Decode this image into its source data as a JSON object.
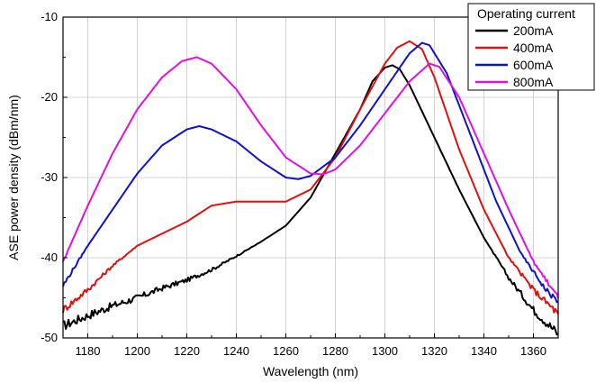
{
  "chart_data": {
    "type": "line",
    "title": "",
    "xlabel": "Wavelength (nm)",
    "ylabel": "ASE power density (dBm/nm)",
    "xlim": [
      1170,
      1370
    ],
    "ylim": [
      -50,
      -10
    ],
    "xticks": [
      1180,
      1200,
      1220,
      1240,
      1260,
      1280,
      1300,
      1320,
      1340,
      1360
    ],
    "yticks": [
      -10,
      -20,
      -30,
      -40,
      -50
    ],
    "grid": true,
    "legend": {
      "title": "Operating current",
      "placement": "top-right"
    },
    "series": [
      {
        "name": "200mA",
        "color": "#000000",
        "points": [
          [
            1170,
            -48.5
          ],
          [
            1180,
            -47.2
          ],
          [
            1190,
            -46.0
          ],
          [
            1200,
            -45.0
          ],
          [
            1210,
            -43.8
          ],
          [
            1220,
            -42.8
          ],
          [
            1230,
            -41.5
          ],
          [
            1240,
            -39.8
          ],
          [
            1250,
            -38.0
          ],
          [
            1260,
            -36.0
          ],
          [
            1270,
            -32.5
          ],
          [
            1280,
            -27.0
          ],
          [
            1290,
            -21.5
          ],
          [
            1295,
            -18.0
          ],
          [
            1300,
            -16.3
          ],
          [
            1303,
            -16.0
          ],
          [
            1306,
            -16.5
          ],
          [
            1310,
            -18.5
          ],
          [
            1320,
            -25.0
          ],
          [
            1330,
            -31.5
          ],
          [
            1340,
            -37.5
          ],
          [
            1350,
            -42.5
          ],
          [
            1360,
            -46.5
          ],
          [
            1370,
            -49.5
          ]
        ]
      },
      {
        "name": "400mA",
        "color": "#e01010",
        "points": [
          [
            1170,
            -46.5
          ],
          [
            1180,
            -44.0
          ],
          [
            1190,
            -41.0
          ],
          [
            1200,
            -38.5
          ],
          [
            1210,
            -37.0
          ],
          [
            1220,
            -35.5
          ],
          [
            1230,
            -33.5
          ],
          [
            1240,
            -33.0
          ],
          [
            1250,
            -33.0
          ],
          [
            1260,
            -33.0
          ],
          [
            1270,
            -31.5
          ],
          [
            1280,
            -27.5
          ],
          [
            1290,
            -21.5
          ],
          [
            1300,
            -15.8
          ],
          [
            1305,
            -13.8
          ],
          [
            1310,
            -13.0
          ],
          [
            1315,
            -14.0
          ],
          [
            1320,
            -17.5
          ],
          [
            1330,
            -26.5
          ],
          [
            1340,
            -34.0
          ],
          [
            1350,
            -40.0
          ],
          [
            1360,
            -44.0
          ],
          [
            1370,
            -47.0
          ]
        ]
      },
      {
        "name": "600mA",
        "color": "#1010d0",
        "points": [
          [
            1170,
            -43.5
          ],
          [
            1180,
            -38.5
          ],
          [
            1190,
            -34.0
          ],
          [
            1200,
            -29.5
          ],
          [
            1210,
            -26.0
          ],
          [
            1220,
            -24.0
          ],
          [
            1225,
            -23.6
          ],
          [
            1230,
            -24.0
          ],
          [
            1240,
            -25.5
          ],
          [
            1250,
            -28.0
          ],
          [
            1260,
            -30.0
          ],
          [
            1265,
            -30.2
          ],
          [
            1270,
            -29.8
          ],
          [
            1280,
            -27.5
          ],
          [
            1290,
            -23.5
          ],
          [
            1300,
            -19.0
          ],
          [
            1310,
            -14.5
          ],
          [
            1315,
            -13.2
          ],
          [
            1318,
            -13.5
          ],
          [
            1325,
            -17.0
          ],
          [
            1335,
            -25.0
          ],
          [
            1345,
            -33.0
          ],
          [
            1355,
            -39.5
          ],
          [
            1365,
            -44.0
          ],
          [
            1370,
            -45.5
          ]
        ]
      },
      {
        "name": "800mA",
        "color": "#e010e0",
        "points": [
          [
            1170,
            -40.5
          ],
          [
            1180,
            -33.5
          ],
          [
            1190,
            -27.0
          ],
          [
            1200,
            -21.5
          ],
          [
            1210,
            -17.5
          ],
          [
            1218,
            -15.5
          ],
          [
            1224,
            -15.0
          ],
          [
            1230,
            -15.8
          ],
          [
            1240,
            -19.0
          ],
          [
            1250,
            -23.5
          ],
          [
            1260,
            -27.5
          ],
          [
            1270,
            -29.5
          ],
          [
            1275,
            -29.6
          ],
          [
            1280,
            -29.0
          ],
          [
            1290,
            -26.0
          ],
          [
            1300,
            -22.0
          ],
          [
            1310,
            -18.0
          ],
          [
            1318,
            -15.8
          ],
          [
            1322,
            -16.2
          ],
          [
            1330,
            -20.0
          ],
          [
            1340,
            -27.0
          ],
          [
            1350,
            -34.0
          ],
          [
            1360,
            -40.5
          ],
          [
            1370,
            -45.0
          ]
        ]
      }
    ]
  }
}
